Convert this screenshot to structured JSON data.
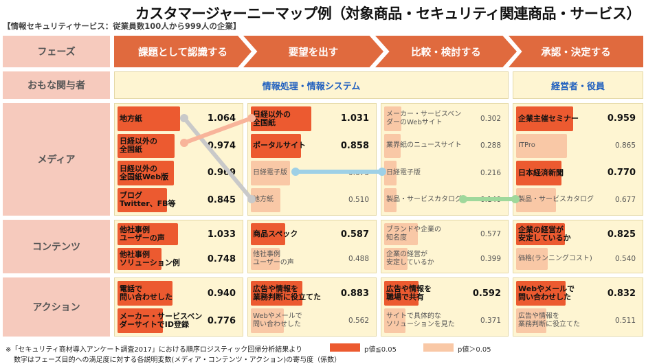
{
  "title": "カスタマージャーニーマップ例（対象商品・セキュリティ関連商品・サービス）",
  "subtitle": "【情報セキュリティサービス：従業員数100人から999人の企業】",
  "colors": {
    "significant": "#ec5a30",
    "nonsignificant": "#f9c8a6",
    "accent": "#e06a3e"
  },
  "header": {
    "phase_label": "フェーズ",
    "phases": [
      "課題として認識する",
      "要望を出す",
      "比較・検討する",
      "承認・決定する"
    ]
  },
  "stakeholders": {
    "label": "おもな関与者",
    "group1": "情報処理・情報システム",
    "group2": "経営者・役員"
  },
  "rows": {
    "media": "メディア",
    "contents": "コンテンツ",
    "action": "アクション"
  },
  "media": {
    "c1": [
      {
        "label": "地方紙",
        "value": "1.064",
        "sig": true
      },
      {
        "label": "日経以外の\n全国紙",
        "value": "0.974",
        "sig": true
      },
      {
        "label": "日経以外の\n全国紙Web版",
        "value": "0.969",
        "sig": true
      },
      {
        "label": "ブログ\nTwitter、FB等",
        "value": "0.845",
        "sig": true
      }
    ],
    "c2": [
      {
        "label": "日経以外の\n全国紙",
        "value": "1.031",
        "sig": true
      },
      {
        "label": "ポータルサイト",
        "value": "0.858",
        "sig": true
      },
      {
        "label": "日経電子版",
        "value": "0.673",
        "sig": false
      },
      {
        "label": "地方紙",
        "value": "0.510",
        "sig": false
      }
    ],
    "c3": [
      {
        "label": "メーカー・サービスベン\nダーのWebサイト",
        "value": "0.302",
        "sig": false
      },
      {
        "label": "業界紙のニュースサイト",
        "value": "0.288",
        "sig": false
      },
      {
        "label": "日経電子版",
        "value": "0.216",
        "sig": false
      },
      {
        "label": "製品・サービスカタログ",
        "value": "0.140",
        "sig": false
      }
    ],
    "c4": [
      {
        "label": "企業主催セミナー",
        "value": "0.959",
        "sig": true
      },
      {
        "label": "ITPro",
        "value": "0.865",
        "sig": false
      },
      {
        "label": "日本経済新聞",
        "value": "0.770",
        "sig": true
      },
      {
        "label": "製品・サービスカタログ",
        "value": "0.677",
        "sig": false
      }
    ]
  },
  "contents": {
    "c1": [
      {
        "label": "他社事例\nユーザーの声",
        "value": "1.033",
        "sig": true
      },
      {
        "label": "他社事例\nソリューション例",
        "value": "0.748",
        "sig": true
      }
    ],
    "c2": [
      {
        "label": "商品スペック",
        "value": "0.587",
        "sig": true
      },
      {
        "label": "他社事例\nユーザーの声",
        "value": "0.488",
        "sig": false
      }
    ],
    "c3": [
      {
        "label": "ブランドや企業の\n知名度",
        "value": "0.577",
        "sig": false
      },
      {
        "label": "企業の経営が\n安定しているか",
        "value": "0.399",
        "sig": false
      }
    ],
    "c4": [
      {
        "label": "企業の経営が\n安定しているか",
        "value": "0.825",
        "sig": true
      },
      {
        "label": "価格(ランニングコスト)",
        "value": "0.540",
        "sig": false
      }
    ]
  },
  "action": {
    "c1": [
      {
        "label": "電話で\n問い合わせした",
        "value": "0.940",
        "sig": true
      },
      {
        "label": "メーカー・サービスベン\nダーサイトでID登録",
        "value": "0.776",
        "sig": true
      }
    ],
    "c2": [
      {
        "label": "広告や情報を\n業務判断に役立てた",
        "value": "0.883",
        "sig": true
      },
      {
        "label": "Webやメールで\n問い合わせした",
        "value": "0.562",
        "sig": false
      }
    ],
    "c3": [
      {
        "label": "広告や情報を\n職場で共有",
        "value": "0.592",
        "sig": true
      },
      {
        "label": "サイトで具体的な\nソリューションを見た",
        "value": "0.371",
        "sig": false
      }
    ],
    "c4": [
      {
        "label": "Webやメールで\n問い合わせした",
        "value": "0.832",
        "sig": true
      },
      {
        "label": "広告や情報を\n業務判断に役立てた",
        "value": "0.511",
        "sig": false
      }
    ]
  },
  "notes": {
    "line1": "※「セキュリティ商材導入アンケート調査2017」における順序ロジスティック回帰分析結果より",
    "line2": "数字はフェーズ目的への満足度に対する各説明変数(メディア・コンテンツ・アクション)の寄与度（係数）"
  },
  "legend": {
    "significant": "p値≦0.05",
    "nonsignificant": "p値＞0.05"
  }
}
